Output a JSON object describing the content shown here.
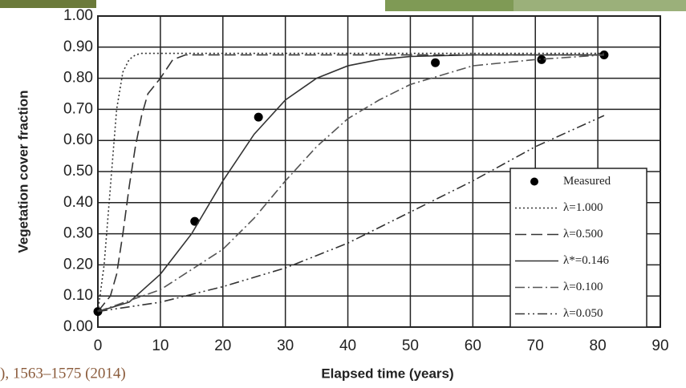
{
  "chart_data": {
    "type": "line",
    "x_label": "Elapsed time (years)",
    "y_label": "Vegetation cover fraction",
    "citation": "), 1563–1575 (2014)",
    "xlim": [
      0,
      90
    ],
    "xticks": [
      0,
      10,
      20,
      30,
      40,
      50,
      60,
      70,
      80,
      90
    ],
    "ylim": [
      0,
      1
    ],
    "yticks": [
      {
        "value": 0,
        "label": "0.00"
      },
      {
        "value": 0.1,
        "label": "0.10"
      },
      {
        "value": 0.2,
        "label": "0.20"
      },
      {
        "value": 0.3,
        "label": "0.30"
      },
      {
        "value": 0.4,
        "label": "0.40"
      },
      {
        "value": 0.5,
        "label": "0.50"
      },
      {
        "value": 0.6,
        "label": "0.60"
      },
      {
        "value": 0.7,
        "label": "0.70"
      },
      {
        "value": 0.8,
        "label": "0.80"
      },
      {
        "value": 0.9,
        "label": "0.90"
      },
      {
        "value": 1,
        "label": "1.00"
      }
    ],
    "grid": true,
    "legend": "lower right",
    "series": [
      {
        "name": "Measured",
        "style": "points",
        "color": "#000000",
        "x": [
          0,
          15.5,
          25.7,
          54,
          71,
          81
        ],
        "values": [
          0.05,
          0.34,
          0.675,
          0.85,
          0.86,
          0.875
        ]
      },
      {
        "name": "λ=1.000",
        "style": "dotted",
        "color": "#333333",
        "x": [
          0,
          1,
          2,
          3,
          4,
          5,
          6,
          7,
          8,
          10,
          20,
          40,
          60,
          81
        ],
        "values": [
          0.05,
          0.2,
          0.45,
          0.7,
          0.82,
          0.86,
          0.875,
          0.88,
          0.88,
          0.88,
          0.88,
          0.88,
          0.88,
          0.88
        ]
      },
      {
        "name": "λ=0.500",
        "style": "dashed",
        "color": "#333333",
        "x": [
          0,
          2,
          3,
          4,
          5,
          6,
          7,
          8,
          10,
          12,
          14,
          20,
          40,
          60,
          81
        ],
        "values": [
          0.05,
          0.1,
          0.17,
          0.3,
          0.45,
          0.58,
          0.68,
          0.75,
          0.8,
          0.86,
          0.875,
          0.875,
          0.875,
          0.875,
          0.875
        ]
      },
      {
        "name": "λ*=0.146",
        "style": "solid",
        "color": "#333333",
        "x": [
          0,
          5,
          10,
          15,
          20,
          25,
          30,
          35,
          40,
          45,
          50,
          60,
          81
        ],
        "values": [
          0.05,
          0.08,
          0.17,
          0.3,
          0.47,
          0.62,
          0.73,
          0.8,
          0.84,
          0.86,
          0.87,
          0.875,
          0.875
        ]
      },
      {
        "name": "λ=0.100",
        "style": "dashdot",
        "color": "#555555",
        "x": [
          0,
          10,
          20,
          25,
          30,
          35,
          40,
          45,
          50,
          55,
          60,
          70,
          81
        ],
        "values": [
          0.05,
          0.12,
          0.25,
          0.35,
          0.47,
          0.58,
          0.67,
          0.73,
          0.78,
          0.81,
          0.84,
          0.86,
          0.875
        ]
      },
      {
        "name": "λ=0.050",
        "style": "dashdotdot",
        "color": "#333333",
        "x": [
          0,
          10,
          20,
          30,
          40,
          50,
          60,
          70,
          81
        ],
        "values": [
          0.05,
          0.08,
          0.13,
          0.19,
          0.27,
          0.37,
          0.47,
          0.58,
          0.68
        ]
      }
    ]
  }
}
